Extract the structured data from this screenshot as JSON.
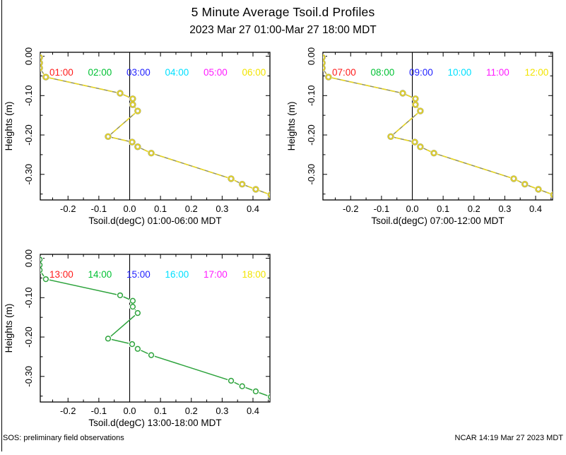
{
  "title": "5 Minute Average Tsoil.d Profiles",
  "subtitle": "2023 Mar 27 01:00-Mar 27 18:00 MDT",
  "footer": {
    "left": "SOS: preliminary field observations",
    "right": "NCAR 14:19 Mar 27 2023 MDT"
  },
  "chart_data": {
    "type": "line",
    "ylabel": "Heights (m)",
    "x_range": [
      -0.29,
      0.455
    ],
    "y_range": [
      0.01,
      -0.365
    ],
    "zero_line_x": 0,
    "grid": "off",
    "x_ticks": {
      "values": [
        -0.2,
        -0.1,
        0,
        0.1,
        0.2,
        0.3,
        0.4
      ],
      "labels": [
        "-0.2",
        "-0.1",
        "0.0",
        "0.1",
        "0.2",
        "0.3",
        "0.4"
      ],
      "minor": [
        -0.25,
        -0.15,
        -0.05,
        0.05,
        0.15,
        0.25,
        0.35,
        0.45
      ]
    },
    "y_ticks": {
      "values": [
        0,
        -0.1,
        -0.2,
        -0.3
      ],
      "labels": [
        "0.00",
        "-0.10",
        "-0.20",
        "-0.30"
      ],
      "minor": [
        -0.05,
        -0.15,
        -0.25,
        -0.35
      ]
    },
    "profile": {
      "tsoil_degC": [
        -0.292,
        -0.292,
        -0.292,
        -0.272,
        -0.031,
        0.01,
        0.01,
        0.026,
        -0.07,
        0.008,
        0.026,
        0.07,
        0.329,
        0.365,
        0.409,
        0.458
      ],
      "height_m": [
        -0.003,
        -0.017,
        -0.03,
        -0.053,
        -0.094,
        -0.108,
        -0.123,
        -0.139,
        -0.204,
        -0.218,
        -0.23,
        -0.246,
        -0.311,
        -0.325,
        -0.338,
        -0.352
      ]
    },
    "subplots": [
      {
        "xlabel": "Tsoil.d(degC) 01:00-06:00 MDT",
        "legend": [
          {
            "label": "01:00",
            "color": "#ff1a1a"
          },
          {
            "label": "02:00",
            "color": "#00c133"
          },
          {
            "label": "03:00",
            "color": "#2222ff"
          },
          {
            "label": "04:00",
            "color": "#00e0ff"
          },
          {
            "label": "05:00",
            "color": "#ff1aff"
          },
          {
            "label": "06:00",
            "color": "#f2e400"
          }
        ],
        "line": {
          "base_color": "#90905e",
          "dash_color": "#e8d622",
          "marker_color": "#ecd91f",
          "marker_under": "#9d9d6e"
        }
      },
      {
        "xlabel": "Tsoil.d(degC) 07:00-12:00 MDT",
        "legend": [
          {
            "label": "07:00",
            "color": "#ff1a1a"
          },
          {
            "label": "08:00",
            "color": "#00c133"
          },
          {
            "label": "09:00",
            "color": "#2222ff"
          },
          {
            "label": "10:00",
            "color": "#00e0ff"
          },
          {
            "label": "11:00",
            "color": "#ff1aff"
          },
          {
            "label": "12:00",
            "color": "#f2e400"
          }
        ],
        "line": {
          "base_color": "#90905e",
          "dash_color": "#e8d622",
          "marker_color": "#ecd91f",
          "marker_under": "#9d9d6e"
        }
      },
      {
        "xlabel": "Tsoil.d(degC) 13:00-18:00 MDT",
        "legend": [
          {
            "label": "13:00",
            "color": "#ff1a1a"
          },
          {
            "label": "14:00",
            "color": "#00c133"
          },
          {
            "label": "15:00",
            "color": "#2222ff"
          },
          {
            "label": "16:00",
            "color": "#00e0ff"
          },
          {
            "label": "17:00",
            "color": "#ff1aff"
          },
          {
            "label": "18:00",
            "color": "#f2e400"
          }
        ],
        "line": {
          "base_color": "#2da33c",
          "dash_color": null,
          "marker_color": "#2da33c",
          "marker_under": null
        }
      }
    ]
  }
}
